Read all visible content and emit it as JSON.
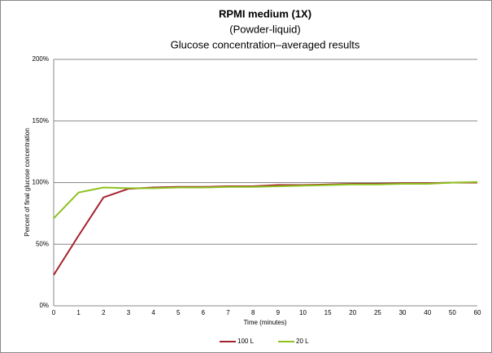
{
  "chart_data": {
    "type": "line",
    "title": "RPMI medium (1X)",
    "subtitle": [
      "(Powder-liquid)",
      "Glucose concentration–averaged results"
    ],
    "x_label": "Time (minutes)",
    "y_label": "Percent of final glucose concentration",
    "categories": [
      "0",
      "1",
      "2",
      "3",
      "4",
      "5",
      "6",
      "7",
      "8",
      "9",
      "10",
      "15",
      "20",
      "25",
      "30",
      "40",
      "50",
      "60"
    ],
    "series": [
      {
        "name": "100 L",
        "color": "#a3222b",
        "values": [
          25,
          57,
          88,
          95,
          96,
          96.5,
          96.5,
          97,
          97,
          98,
          98,
          98.5,
          99,
          99,
          99.5,
          99.5,
          100,
          100
        ]
      },
      {
        "name": "20 L",
        "color": "#8dc21f",
        "values": [
          71,
          92,
          96,
          95.5,
          95.5,
          96,
          96,
          96.5,
          96.5,
          97,
          97.5,
          98,
          98.5,
          98.5,
          99,
          99,
          100,
          100.5
        ]
      }
    ],
    "ylim": [
      0,
      200
    ],
    "yticks": [
      {
        "value": 0,
        "label": "0%"
      },
      {
        "value": 50,
        "label": "50%"
      },
      {
        "value": 100,
        "label": "100%"
      },
      {
        "value": 150,
        "label": "150%"
      },
      {
        "value": 200,
        "label": "200%"
      }
    ],
    "grid": true,
    "legend": "bottom"
  }
}
